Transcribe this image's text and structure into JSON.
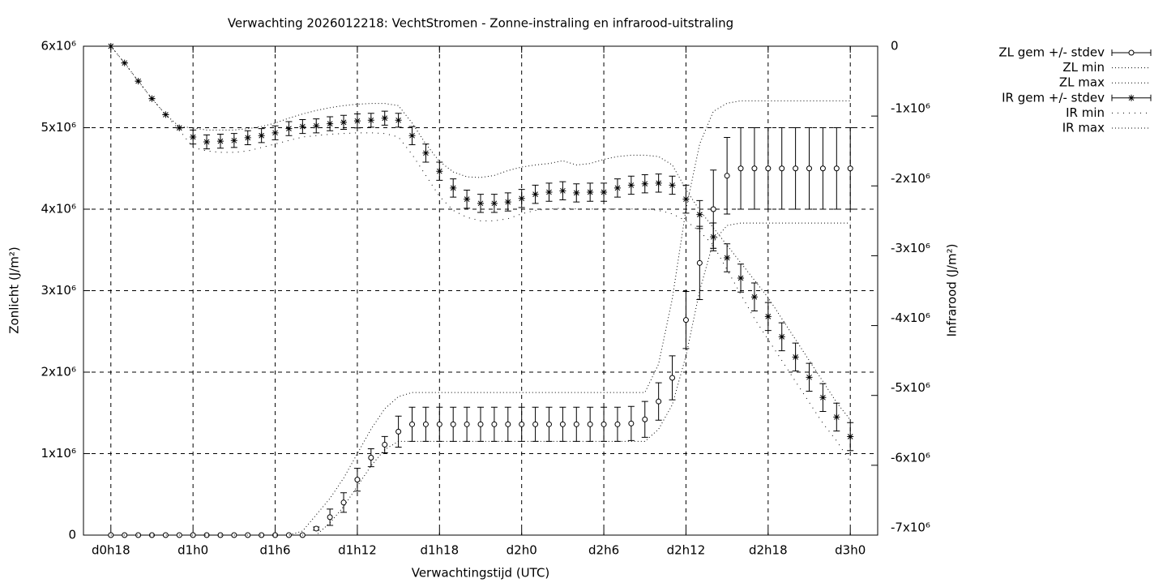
{
  "chart_data": {
    "type": "errorbar",
    "title": "Verwachting 2026012218: VechtStromen - Zonne-instraling en infrarood-uitstraling",
    "xlabel": "Verwachtingstijd (UTC)",
    "ylabel": "Zonlicht (J/m²)",
    "y2label": "Infrarood (J/m²)",
    "x": [
      18,
      19,
      20,
      21,
      22,
      23,
      24,
      25,
      26,
      27,
      28,
      29,
      30,
      31,
      32,
      33,
      34,
      35,
      36,
      37,
      38,
      39,
      40,
      41,
      42,
      43,
      44,
      45,
      46,
      47,
      48,
      49,
      50,
      51,
      52,
      53,
      54,
      55,
      56,
      57,
      58,
      59,
      60,
      61,
      62,
      63,
      64,
      65,
      66,
      67,
      68,
      69,
      70,
      71,
      72
    ],
    "xlim": [
      16,
      74
    ],
    "xticks": [
      {
        "value": 18,
        "label": "d0h18"
      },
      {
        "value": 24,
        "label": "d1h0"
      },
      {
        "value": 30,
        "label": "d1h6"
      },
      {
        "value": 36,
        "label": "d1h12"
      },
      {
        "value": 42,
        "label": "d1h18"
      },
      {
        "value": 48,
        "label": "d2h0"
      },
      {
        "value": 54,
        "label": "d2h6"
      },
      {
        "value": 60,
        "label": "d2h12"
      },
      {
        "value": 66,
        "label": "d2h18"
      },
      {
        "value": 72,
        "label": "d3h0"
      }
    ],
    "ylim": [
      0,
      6000000.0
    ],
    "yticks": [
      0,
      {
        "value": 1000000.0,
        "label": "1x10⁶"
      },
      {
        "value": 2000000.0,
        "label": "2x10⁶"
      },
      {
        "value": 3000000.0,
        "label": "3x10⁶"
      },
      {
        "value": 4000000.0,
        "label": "4x10⁶"
      },
      {
        "value": 5000000.0,
        "label": "5x10⁶"
      },
      {
        "value": 6000000.0,
        "label": "6x10⁶"
      }
    ],
    "y2lim": [
      -7000000.0,
      0
    ],
    "y2ticks": [
      0,
      {
        "value": -1000000.0,
        "label": "-1x10⁶"
      },
      {
        "value": -2000000.0,
        "label": "-2x10⁶"
      },
      {
        "value": -3000000.0,
        "label": "-3x10⁶"
      },
      {
        "value": -4000000.0,
        "label": "-4x10⁶"
      },
      {
        "value": -5000000.0,
        "label": "-5x10⁶"
      },
      {
        "value": -6000000.0,
        "label": "-6x10⁶"
      },
      {
        "value": -7000000.0,
        "label": "-7x10⁶"
      }
    ],
    "grid": true,
    "legend": "outside-right",
    "series": [
      {
        "name": "ZL gem +/- stdev",
        "color": "#000000",
        "style": "errorbars",
        "marker": "circle",
        "values": [
          0,
          0,
          0,
          0,
          0,
          0,
          0,
          0,
          0,
          0,
          0,
          0,
          0,
          0,
          0,
          80000.0,
          220000.0,
          400000.0,
          680000.0,
          950000.0,
          1110000.0,
          1270000.0,
          1360000.0,
          1360000.0,
          1360000.0,
          1360000.0,
          1360000.0,
          1360000.0,
          1360000.0,
          1360000.0,
          1360000.0,
          1360000.0,
          1360000.0,
          1360000.0,
          1360000.0,
          1360000.0,
          1360000.0,
          1360000.0,
          1370000.0,
          1420000.0,
          1640000.0,
          1930000.0,
          2640000.0,
          3340000.0,
          4000000.0,
          4410000.0,
          4500000.0,
          4500000.0,
          4500000.0,
          4500000.0,
          4500000.0,
          4500000.0,
          4500000.0,
          4500000.0,
          4500000.0
        ],
        "errors": [
          0,
          0,
          0,
          0,
          0,
          0,
          0,
          0,
          0,
          0,
          0,
          0,
          0,
          0,
          0,
          20000.0,
          100000.0,
          120000.0,
          140000.0,
          110000.0,
          100000.0,
          190000.0,
          210000.0,
          210000.0,
          210000.0,
          210000.0,
          210000.0,
          210000.0,
          210000.0,
          210000.0,
          210000.0,
          210000.0,
          210000.0,
          210000.0,
          210000.0,
          210000.0,
          210000.0,
          210000.0,
          210000.0,
          220000.0,
          230000.0,
          270000.0,
          350000.0,
          450000.0,
          480000.0,
          470000.0,
          500000.0,
          500000.0,
          500000.0,
          500000.0,
          500000.0,
          500000.0,
          500000.0,
          500000.0,
          500000.0
        ]
      },
      {
        "name": "ZL min",
        "color": "#000000",
        "style": "dotted",
        "values": [
          0,
          0,
          0,
          0,
          0,
          0,
          0,
          0,
          0,
          0,
          0,
          0,
          0,
          0,
          0,
          0,
          150000.0,
          350000.0,
          600000.0,
          850000.0,
          1050000.0,
          1150000.0,
          1150000.0,
          1150000.0,
          1150000.0,
          1150000.0,
          1150000.0,
          1150000.0,
          1150000.0,
          1150000.0,
          1150000.0,
          1150000.0,
          1150000.0,
          1150000.0,
          1150000.0,
          1150000.0,
          1150000.0,
          1150000.0,
          1150000.0,
          1150000.0,
          1300000.0,
          1600000.0,
          2200000.0,
          3000000.0,
          3600000.0,
          3800000.0,
          3830000.0,
          3830000.0,
          3830000.0,
          3830000.0,
          3830000.0,
          3830000.0,
          3830000.0,
          3830000.0,
          3830000.0
        ]
      },
      {
        "name": "ZL max",
        "color": "#000000",
        "style": "dotted",
        "values": [
          0,
          0,
          0,
          0,
          0,
          0,
          0,
          0,
          0,
          0,
          0,
          0,
          0,
          0,
          50000.0,
          250000.0,
          450000.0,
          700000.0,
          1000000.0,
          1300000.0,
          1550000.0,
          1700000.0,
          1750000.0,
          1750000.0,
          1750000.0,
          1750000.0,
          1750000.0,
          1750000.0,
          1750000.0,
          1750000.0,
          1750000.0,
          1750000.0,
          1750000.0,
          1750000.0,
          1750000.0,
          1750000.0,
          1750000.0,
          1750000.0,
          1750000.0,
          1750000.0,
          2100000.0,
          2900000.0,
          4000000.0,
          4800000.0,
          5200000.0,
          5300000.0,
          5330000.0,
          5330000.0,
          5330000.0,
          5330000.0,
          5330000.0,
          5330000.0,
          5330000.0,
          5330000.0,
          5330000.0
        ]
      },
      {
        "name": "IR gem +/- stdev",
        "color": "#000000",
        "style": "errorbars",
        "marker": "star",
        "axis": "y2",
        "values": [
          0,
          -240000.0,
          -500000.0,
          -750000.0,
          -980000.0,
          -1170000.0,
          -1300000.0,
          -1370000.0,
          -1360000.0,
          -1350000.0,
          -1310000.0,
          -1280000.0,
          -1240000.0,
          -1180000.0,
          -1150000.0,
          -1140000.0,
          -1110000.0,
          -1090000.0,
          -1070000.0,
          -1060000.0,
          -1030000.0,
          -1060000.0,
          -1280000.0,
          -1530000.0,
          -1790000.0,
          -2030000.0,
          -2190000.0,
          -2250000.0,
          -2250000.0,
          -2230000.0,
          -2180000.0,
          -2120000.0,
          -2090000.0,
          -2070000.0,
          -2100000.0,
          -2090000.0,
          -2090000.0,
          -2030000.0,
          -1990000.0,
          -1970000.0,
          -1960000.0,
          -1990000.0,
          -2190000.0,
          -2410000.0,
          -2730000.0,
          -3030000.0,
          -3320000.0,
          -3590000.0,
          -3870000.0,
          -4160000.0,
          -4450000.0,
          -4740000.0,
          -5030000.0,
          -5310000.0,
          -5590000.0
        ],
        "errors": [
          0,
          0,
          0,
          0,
          0,
          0,
          100000.0,
          100000.0,
          100000.0,
          100000.0,
          100000.0,
          100000.0,
          100000.0,
          100000.0,
          100000.0,
          100000.0,
          100000.0,
          100000.0,
          100000.0,
          100000.0,
          100000.0,
          100000.0,
          130000.0,
          130000.0,
          130000.0,
          130000.0,
          130000.0,
          130000.0,
          130000.0,
          130000.0,
          130000.0,
          130000.0,
          130000.0,
          130000.0,
          130000.0,
          130000.0,
          130000.0,
          130000.0,
          130000.0,
          130000.0,
          130000.0,
          130000.0,
          200000.0,
          200000.0,
          200000.0,
          200000.0,
          200000.0,
          200000.0,
          200000.0,
          200000.0,
          200000.0,
          200000.0,
          200000.0,
          200000.0,
          200000.0
        ]
      },
      {
        "name": "IR min",
        "color": "#000000",
        "style": "dots",
        "axis": "y2",
        "values": [
          0,
          -240000.0,
          -500000.0,
          -750000.0,
          -980000.0,
          -1200000.0,
          -1450000.0,
          -1500000.0,
          -1520000.0,
          -1520000.0,
          -1500000.0,
          -1450000.0,
          -1400000.0,
          -1350000.0,
          -1300000.0,
          -1280000.0,
          -1260000.0,
          -1250000.0,
          -1240000.0,
          -1240000.0,
          -1250000.0,
          -1300000.0,
          -1550000.0,
          -1850000.0,
          -2150000.0,
          -2350000.0,
          -2450000.0,
          -2500000.0,
          -2500000.0,
          -2470000.0,
          -2400000.0,
          -2350000.0,
          -2330000.0,
          -2320000.0,
          -2330000.0,
          -2330000.0,
          -2330000.0,
          -2330000.0,
          -2330000.0,
          -2330000.0,
          -2350000.0,
          -2400000.0,
          -2500000.0,
          -2650000.0,
          -2850000.0,
          -3200000.0,
          -3550000.0,
          -3900000.0,
          -4200000.0,
          -4500000.0,
          -4800000.0,
          -5100000.0,
          -5400000.0,
          -5650000.0,
          -5950000.0
        ]
      },
      {
        "name": "IR max",
        "color": "#000000",
        "style": "dotted",
        "axis": "y2",
        "values": [
          0,
          -240000.0,
          -500000.0,
          -750000.0,
          -980000.0,
          -1150000.0,
          -1170000.0,
          -1200000.0,
          -1200000.0,
          -1200000.0,
          -1180000.0,
          -1150000.0,
          -1100000.0,
          -1030000.0,
          -970000.0,
          -920000.0,
          -880000.0,
          -850000.0,
          -830000.0,
          -820000.0,
          -820000.0,
          -850000.0,
          -1100000.0,
          -1400000.0,
          -1650000.0,
          -1800000.0,
          -1870000.0,
          -1880000.0,
          -1850000.0,
          -1780000.0,
          -1730000.0,
          -1700000.0,
          -1680000.0,
          -1640000.0,
          -1700000.0,
          -1680000.0,
          -1620000.0,
          -1580000.0,
          -1560000.0,
          -1560000.0,
          -1580000.0,
          -1700000.0,
          -2050000.0,
          -2350000.0,
          -2600000.0,
          -2850000.0,
          -3100000.0,
          -3350000.0,
          -3600000.0,
          -3900000.0,
          -4200000.0,
          -4500000.0,
          -4800000.0,
          -5100000.0,
          -5350000.0
        ]
      }
    ]
  }
}
